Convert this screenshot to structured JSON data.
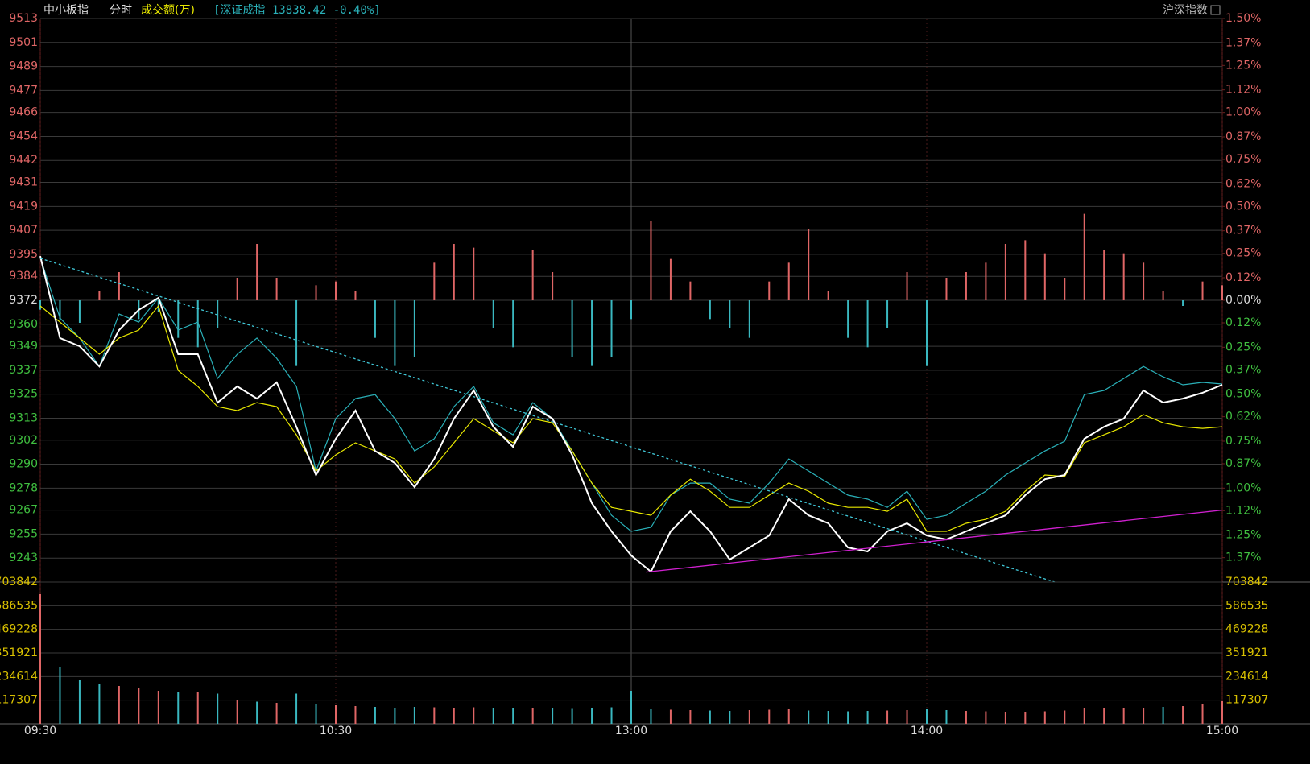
{
  "header": {
    "name": "中小板指",
    "mode": "分时",
    "volume_label": "成交额(万)",
    "compare": "[深证成指 13838.42 -0.40%]",
    "toggle": "沪深指数"
  },
  "chart_data": [
    {
      "type": "line",
      "x": [
        0,
        4,
        8,
        12,
        16,
        20,
        24,
        28,
        32,
        36,
        40,
        44,
        48,
        52,
        56,
        60,
        64,
        68,
        72,
        76,
        80,
        84,
        88,
        92,
        96,
        100,
        104,
        108,
        112,
        116,
        120,
        124,
        128,
        132,
        136,
        140,
        144,
        148,
        152,
        156,
        160,
        164,
        168,
        172,
        176,
        180,
        184,
        188,
        192,
        196,
        200,
        204,
        208,
        212,
        216,
        220,
        224,
        228,
        232,
        236,
        240
      ],
      "xlim": [
        0,
        240
      ],
      "xticks": [
        {
          "value": 0,
          "label": "09:30"
        },
        {
          "value": 60,
          "label": "10:30"
        },
        {
          "value": 120,
          "label": "13:00"
        },
        {
          "value": 180,
          "label": "14:00"
        },
        {
          "value": 240,
          "label": "15:00"
        }
      ],
      "ylim": [
        9231,
        9513
      ],
      "yticks": [
        9513,
        9501,
        9489,
        9477,
        9466,
        9454,
        9442,
        9431,
        9419,
        9407,
        9395,
        9384,
        9372,
        9360,
        9349,
        9337,
        9325,
        9313,
        9302,
        9290,
        9278,
        9267,
        9255,
        9243
      ],
      "y2lim": [
        -1.5,
        1.5
      ],
      "y2ticks": [
        {
          "value": 1.5,
          "label": "1.50%"
        },
        {
          "value": 1.37,
          "label": "1.37%"
        },
        {
          "value": 1.25,
          "label": "1.25%"
        },
        {
          "value": 1.12,
          "label": "1.12%"
        },
        {
          "value": 1.0,
          "label": "1.00%"
        },
        {
          "value": 0.87,
          "label": "0.87%"
        },
        {
          "value": 0.75,
          "label": "0.75%"
        },
        {
          "value": 0.62,
          "label": "0.62%"
        },
        {
          "value": 0.5,
          "label": "0.50%"
        },
        {
          "value": 0.37,
          "label": "0.37%"
        },
        {
          "value": 0.25,
          "label": "0.25%"
        },
        {
          "value": 0.12,
          "label": "0.12%"
        },
        {
          "value": 0,
          "label": "0.00%"
        },
        {
          "value": -0.12,
          "label": "0.12%"
        },
        {
          "value": -0.25,
          "label": "0.25%"
        },
        {
          "value": -0.37,
          "label": "0.37%"
        },
        {
          "value": -0.5,
          "label": "0.50%"
        },
        {
          "value": -0.62,
          "label": "0.62%"
        },
        {
          "value": -0.75,
          "label": "0.75%"
        },
        {
          "value": -0.87,
          "label": "0.87%"
        },
        {
          "value": -1.0,
          "label": "1.00%"
        },
        {
          "value": -1.12,
          "label": "1.12%"
        },
        {
          "value": -1.25,
          "label": "1.25%"
        },
        {
          "value": -1.37,
          "label": "1.37%"
        }
      ],
      "up_color": "#e06666",
      "down_color": "#3ab8c0",
      "flat_color": "#dddddd",
      "series": [
        {
          "type": "bar",
          "axis": "y2",
          "values": [
            -0.05,
            -0.1,
            -0.12,
            0.05,
            0.15,
            -0.1,
            -0.06,
            -0.2,
            -0.25,
            -0.15,
            0.12,
            0.3,
            0.12,
            -0.35,
            0.08,
            0.1,
            0.05,
            -0.2,
            -0.35,
            -0.3,
            0.2,
            0.3,
            0.28,
            -0.15,
            -0.25,
            0.27,
            0.15,
            -0.3,
            -0.35,
            -0.3,
            -0.1,
            0.42,
            0.22,
            0.1,
            -0.1,
            -0.15,
            -0.2,
            0.1,
            0.2,
            0.38,
            0.05,
            -0.2,
            -0.25,
            -0.15,
            0.15,
            -0.35,
            0.12,
            0.15,
            0.2,
            0.3,
            0.32,
            0.25,
            0.12,
            0.46,
            0.27,
            0.25,
            0.2,
            0.05,
            -0.03,
            0.1,
            0.08
          ]
        },
        {
          "type": "line",
          "color": "#2ab0b8",
          "values": [
            9393.3,
            9363.1,
            9353.1,
            9338.9,
            9365.1,
            9361.1,
            9373.2,
            9357.1,
            9361.1,
            9332.9,
            9345.0,
            9353.1,
            9343.0,
            9328.9,
            9286.6,
            9312.8,
            9322.8,
            9324.8,
            9312.8,
            9296.6,
            9302.7,
            9318.8,
            9328.9,
            9310.7,
            9304.7,
            9320.8,
            9312.8,
            9296.6,
            9280.5,
            9264.4,
            9256.4,
            9258.4,
            9274.5,
            9280.5,
            9280.5,
            9272.5,
            9270.5,
            9280.5,
            9292.6,
            9286.6,
            9280.5,
            9274.5,
            9272.5,
            9268.4,
            9276.5,
            9262.4,
            9264.4,
            9270.5,
            9276.5,
            9284.6,
            9290.6,
            9296.6,
            9301.5,
            9324.8,
            9326.9,
            9332.9,
            9338.9,
            9333.7,
            9329.7,
            9330.9,
            9330.1
          ]
        },
        {
          "type": "line",
          "color": "#e8e800",
          "values": [
            9369.2,
            9361.1,
            9353.1,
            9345.0,
            9353.1,
            9357.1,
            9369.2,
            9336.9,
            9328.9,
            9318.8,
            9316.8,
            9320.8,
            9318.8,
            9304.7,
            9286.6,
            9294.6,
            9300.7,
            9296.6,
            9292.6,
            9280.5,
            9288.6,
            9300.7,
            9312.8,
            9306.7,
            9300.7,
            9312.8,
            9310.7,
            9296.6,
            9280.5,
            9268.4,
            9266.4,
            9264.4,
            9274.5,
            9282.5,
            9276.5,
            9268.4,
            9268.4,
            9274.5,
            9280.5,
            9276.5,
            9270.5,
            9268.4,
            9268.4,
            9266.4,
            9272.5,
            9256.4,
            9256.4,
            9260.4,
            9262.4,
            9266.4,
            9276.5,
            9284.6,
            9283.8,
            9300.7,
            9304.7,
            9308.7,
            9314.8,
            9310.7,
            9308.7,
            9307.9,
            9308.7
          ]
        },
        {
          "type": "line",
          "color": "#ffffff",
          "values": [
            9394.1,
            9353.1,
            9349.0,
            9338.9,
            9357.1,
            9367.2,
            9373.2,
            9345.0,
            9345.0,
            9320.8,
            9328.9,
            9322.8,
            9330.9,
            9308.7,
            9284.6,
            9302.7,
            9316.8,
            9296.6,
            9290.6,
            9278.5,
            9292.6,
            9312.8,
            9326.9,
            9308.7,
            9298.7,
            9318.8,
            9312.8,
            9294.6,
            9270.5,
            9256.4,
            9244.3,
            9236.2,
            9256.4,
            9266.4,
            9256.4,
            9242.3,
            9248.3,
            9254.3,
            9272.5,
            9264.4,
            9260.4,
            9248.3,
            9246.3,
            9256.4,
            9260.4,
            9254.3,
            9252.3,
            9256.4,
            9260.4,
            9264.4,
            9274.5,
            9282.5,
            9284.6,
            9302.7,
            9308.7,
            9312.8,
            9326.9,
            9320.8,
            9322.8,
            9325.7,
            9329.7
          ]
        }
      ],
      "trendlines": [
        {
          "color": "#40c8d8",
          "dashed": true,
          "x": [
            0,
            206
          ],
          "y": [
            9393,
            9231
          ]
        },
        {
          "color": "#d020d0",
          "dashed": false,
          "x": [
            123,
            240
          ],
          "y": [
            9236,
            9267
          ]
        }
      ],
      "grid": true
    },
    {
      "type": "bar",
      "x": [
        0,
        4,
        8,
        12,
        16,
        20,
        24,
        28,
        32,
        36,
        40,
        44,
        48,
        52,
        56,
        60,
        64,
        68,
        72,
        76,
        80,
        84,
        88,
        92,
        96,
        100,
        104,
        108,
        112,
        116,
        120,
        124,
        128,
        132,
        136,
        140,
        144,
        148,
        152,
        156,
        160,
        164,
        168,
        172,
        176,
        180,
        184,
        188,
        192,
        196,
        200,
        204,
        208,
        212,
        216,
        220,
        224,
        228,
        232,
        236,
        240
      ],
      "xlim": [
        0,
        240
      ],
      "ylim": [
        0,
        703842
      ],
      "yticks": [
        703842,
        586535,
        469228,
        351921,
        234614,
        117307
      ],
      "values": [
        643900,
        284000,
        216000,
        196000,
        188000,
        176000,
        164000,
        156000,
        160000,
        150000,
        120000,
        110000,
        104000,
        150000,
        100000,
        92000,
        88000,
        84000,
        80000,
        84000,
        82000,
        80000,
        82000,
        78000,
        80000,
        76000,
        78000,
        74000,
        80000,
        82000,
        164000,
        72000,
        70000,
        68000,
        66000,
        64000,
        68000,
        70000,
        72000,
        66000,
        64000,
        62000,
        64000,
        66000,
        68000,
        72000,
        68000,
        64000,
        62000,
        60000,
        60000,
        62000,
        66000,
        76000,
        78000,
        76000,
        80000,
        84000,
        88000,
        100000,
        112000
      ],
      "tick_color": "#d8c000",
      "grid": true
    }
  ]
}
